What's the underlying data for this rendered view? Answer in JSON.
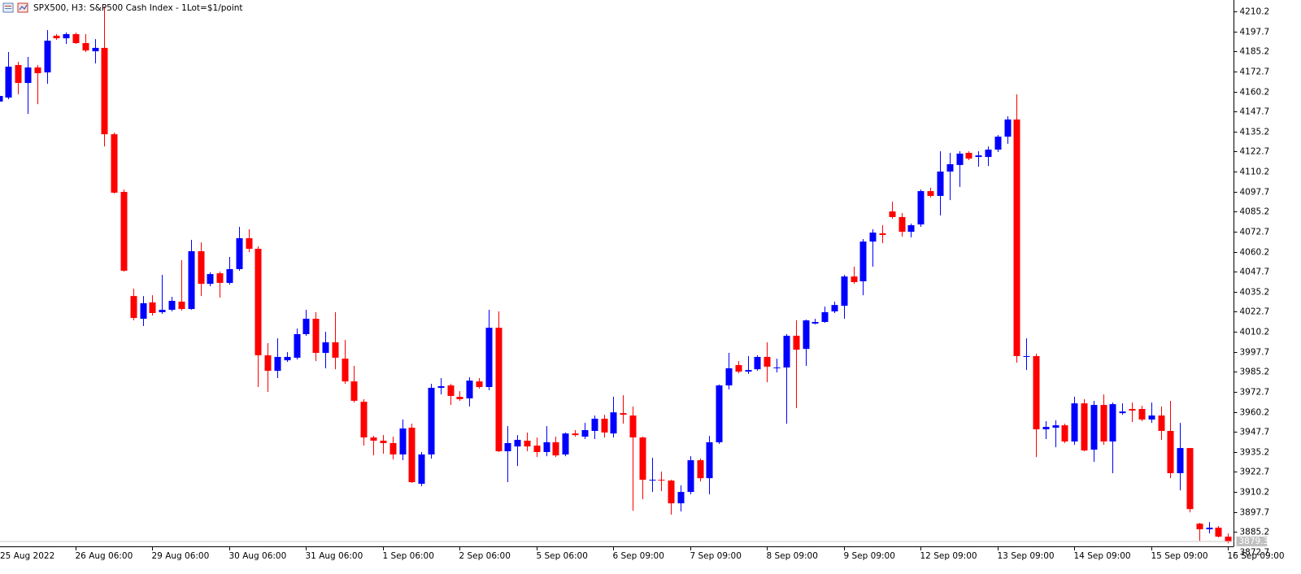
{
  "chart_data": {
    "type": "candlestick",
    "title": "SPX500, H3:",
    "subtitle": "S&P500 Cash Index - 1Lot=$1/point",
    "up_color": "#0000ff",
    "down_color": "#ff0000",
    "grid": false,
    "ylim": [
      3867.6,
      4217.3
    ],
    "yticks": [
      4210.2,
      4197.7,
      4185.2,
      4172.7,
      4160.2,
      4147.7,
      4135.2,
      4122.7,
      4110.2,
      4097.7,
      4085.2,
      4072.7,
      4060.2,
      4047.7,
      4035.2,
      4022.7,
      4010.2,
      3997.7,
      3985.2,
      3972.7,
      3960.2,
      3947.7,
      3935.2,
      3922.7,
      3910.2,
      3897.7,
      3885.2,
      3872.7
    ],
    "categories": [
      "25 Aug 2022",
      null,
      null,
      null,
      null,
      null,
      null,
      null,
      "26 Aug 06:00",
      null,
      null,
      null,
      null,
      null,
      null,
      null,
      "29 Aug 06:00",
      null,
      null,
      null,
      null,
      null,
      null,
      null,
      "30 Aug 06:00",
      null,
      null,
      null,
      null,
      null,
      null,
      null,
      "31 Aug 06:00",
      null,
      null,
      null,
      null,
      null,
      null,
      null,
      "1 Sep 06:00",
      null,
      null,
      null,
      null,
      null,
      null,
      null,
      "2 Sep 06:00",
      null,
      null,
      null,
      null,
      null,
      null,
      null,
      "5 Sep 06:00",
      null,
      null,
      null,
      null,
      null,
      null,
      null,
      "6 Sep 09:00",
      null,
      null,
      null,
      null,
      null,
      null,
      null,
      "7 Sep 09:00",
      null,
      null,
      null,
      null,
      null,
      null,
      null,
      "8 Sep 09:00",
      null,
      null,
      null,
      null,
      null,
      null,
      null,
      "9 Sep 09:00",
      null,
      null,
      null,
      null,
      null,
      null,
      null,
      "12 Sep 09:00",
      null,
      null,
      null,
      null,
      null,
      null,
      null,
      "13 Sep 09:00",
      null,
      null,
      null,
      null,
      null,
      null,
      null,
      "14 Sep 09:00",
      null,
      null,
      null,
      null,
      null,
      null,
      null,
      "15 Sep 09:00",
      null,
      null,
      null,
      null,
      null,
      null,
      null,
      "16 Sep 09:00"
    ],
    "open": [
      4153.9,
      4156.4,
      4176.7,
      4165.5,
      4175.2,
      4172.1,
      4195.0,
      4193.4,
      4196.0,
      4190.4,
      4185.3,
      4187.4,
      4133.5,
      4097.5,
      4032.5,
      4018.3,
      4028.5,
      4022.4,
      4023.9,
      4029.0,
      4024.4,
      4060.5,
      4040.1,
      4046.7,
      4040.7,
      4049.3,
      4068.6,
      4062.0,
      3995.5,
      3985.8,
      3992.4,
      3994.0,
      4008.7,
      4018.3,
      3997.0,
      4003.6,
      3993.4,
      3979.2,
      3966.5,
      3944.2,
      3942.2,
      3940.7,
      3933.6,
      3950.3,
      3915.3,
      3933.6,
      3975.2,
      3976.7,
      3969.6,
      3968.6,
      3979.2,
      3975.7,
      4012.7,
      3935.6,
      3938.6,
      3942.2,
      3939.1,
      3935.1,
      3941.2,
      3933.6,
      3946.7,
      3944.7,
      3948.3,
      3955.9,
      3946.7,
      3959.4,
      3957.9,
      3944.2,
      3917.3,
      3917.8,
      3917.3,
      3903.1,
      3910.2,
      3930.0,
      3918.8,
      3941.2,
      3976.7,
      3989.4,
      3985.3,
      3986.8,
      3994.5,
      3987.4,
      3987.9,
      4007.7,
      3999.5,
      4015.3,
      4016.3,
      4022.9,
      4026.4,
      4044.7,
      4041.7,
      4066.5,
      4071.6,
      4085.3,
      4081.8,
      4072.6,
      4077.2,
      4098.0,
      4095.0,
      4110.2,
      4114.3,
      4121.9,
      4119.3,
      4119.3,
      4123.9,
      4132.0,
      4142.7,
      3994.5,
      3995.0,
      3949.3,
      3950.3,
      3951.8,
      3941.7,
      3965.5,
      3936.6,
      3964.5,
      3941.7,
      3959.4,
      3962.0,
      3962.0,
      3955.4,
      3957.9,
      3948.3,
      3921.9,
      3937.6,
      3890.4,
      3886.9,
      3887.9,
      3882.3
    ],
    "high": [
      4160.5,
      4184.8,
      4178.7,
      4181.8,
      4176.7,
      4198.5,
      4196.0,
      4197.0,
      4197.0,
      4196.0,
      4192.9,
      4213.2,
      4134.6,
      4099.0,
      4037.1,
      4032.5,
      4033.0,
      4045.7,
      4032.0,
      4054.9,
      4067.6,
      4066.0,
      4047.3,
      4047.8,
      4056.9,
      4075.7,
      4074.2,
      4063.5,
      4003.1,
      4006.1,
      3997.5,
      4012.2,
      4023.9,
      4022.4,
      4010.2,
      4022.4,
      4005.1,
      3988.9,
      3968.1,
      3945.2,
      3945.7,
      3944.7,
      3955.4,
      3952.8,
      3935.1,
      3977.7,
      3981.3,
      3977.7,
      3973.1,
      3981.8,
      3981.3,
      4023.9,
      4022.9,
      3951.3,
      3945.7,
      3947.3,
      3944.2,
      3951.3,
      3944.7,
      3947.3,
      3948.8,
      3953.3,
      3957.9,
      3958.4,
      3969.6,
      3970.6,
      3963.5,
      3944.7,
      3931.5,
      3922.9,
      3917.8,
      3914.3,
      3932.5,
      3931.0,
      3945.2,
      3977.2,
      3997.0,
      3991.9,
      3995.0,
      3995.5,
      4003.6,
      3993.4,
      4008.7,
      4017.3,
      4017.8,
      4018.3,
      4025.9,
      4029.0,
      4045.7,
      4050.8,
      4068.1,
      4074.2,
      4076.7,
      4091.4,
      4084.3,
      4077.7,
      4099.0,
      4100.0,
      4122.9,
      4121.9,
      4122.9,
      4122.9,
      4122.9,
      4125.9,
      4133.0,
      4144.7,
      4158.4,
      4006.1,
      3996.5,
      3954.4,
      3954.9,
      3952.8,
      3969.6,
      3968.1,
      3967.1,
      3971.1,
      3966.0,
      3965.5,
      3966.0,
      3964.0,
      3966.0,
      3963.5,
      3967.1,
      3953.3,
      3937.6,
      3890.9,
      3891.4,
      3888.9,
      3884.3
    ],
    "low": [
      4152.8,
      4155.4,
      4158.4,
      4146.2,
      4152.3,
      4165.0,
      4192.4,
      4189.9,
      4189.9,
      4184.8,
      4177.7,
      4125.9,
      4096.5,
      4047.8,
      4017.3,
      4013.8,
      4020.3,
      4021.4,
      4022.9,
      4023.4,
      4023.9,
      4032.5,
      4038.6,
      4031.5,
      4039.6,
      4048.3,
      4059.9,
      3975.7,
      3972.6,
      3981.3,
      3991.4,
      3992.9,
      4007.7,
      3991.9,
      3987.4,
      3986.8,
      3977.7,
      3966.0,
      3939.1,
      3933.0,
      3934.1,
      3930.5,
      3930.0,
      3915.8,
      3913.8,
      3931.0,
      3971.1,
      3964.5,
      3967.1,
      3963.5,
      3974.7,
      3973.7,
      3935.1,
      3916.3,
      3926.4,
      3935.6,
      3932.0,
      3932.5,
      3932.0,
      3932.5,
      3944.7,
      3943.2,
      3943.2,
      3944.2,
      3944.2,
      3952.8,
      3898.5,
      3905.6,
      3910.2,
      3910.7,
      3896.0,
      3898.0,
      3908.7,
      3916.8,
      3908.7,
      3940.2,
      3974.2,
      3984.3,
      3983.8,
      3985.8,
      3978.7,
      3984.8,
      3952.8,
      3962.5,
      3988.9,
      4014.8,
      4015.8,
      4021.9,
      4018.3,
      4040.1,
      4033.0,
      4050.8,
      4065.5,
      4080.8,
      4069.6,
      4069.1,
      4075.7,
      4094.0,
      4082.8,
      4092.4,
      4100.6,
      4117.3,
      4113.2,
      4113.7,
      4122.4,
      4127.5,
      3990.9,
      3986.3,
      3932.0,
      3943.2,
      3938.1,
      3940.7,
      3939.6,
      3935.6,
      3929.0,
      3939.6,
      3921.9,
      3958.4,
      3953.9,
      3954.4,
      3953.3,
      3942.7,
      3918.8,
      3911.2,
      3897.5,
      3879.7,
      3884.3,
      3881.8,
      3878.2
    ],
    "close": [
      4157.4,
      4175.7,
      4165.5,
      4175.2,
      4171.6,
      4191.9,
      4193.4,
      4196.0,
      4190.4,
      4185.8,
      4187.4,
      4133.5,
      4097.0,
      4048.3,
      4018.8,
      4028.0,
      4021.9,
      4023.9,
      4029.5,
      4024.4,
      4060.5,
      4040.1,
      4046.2,
      4040.7,
      4049.3,
      4068.6,
      4062.0,
      3995.5,
      3985.8,
      3994.5,
      3994.5,
      4008.7,
      4018.3,
      3997.0,
      4003.6,
      3994.0,
      3979.2,
      3967.1,
      3944.2,
      3942.2,
      3940.7,
      3933.6,
      3949.8,
      3916.3,
      3933.6,
      3975.2,
      3976.2,
      3970.1,
      3968.1,
      3979.7,
      3975.7,
      4012.7,
      3935.6,
      3940.7,
      3942.7,
      3938.6,
      3935.1,
      3941.2,
      3933.0,
      3946.7,
      3945.7,
      3948.8,
      3955.9,
      3947.3,
      3959.9,
      3958.4,
      3944.2,
      3917.8,
      3917.8,
      3917.3,
      3903.1,
      3910.2,
      3930.0,
      3918.8,
      3941.2,
      3976.7,
      3987.4,
      3985.3,
      3986.3,
      3994.5,
      3988.4,
      3987.9,
      4007.7,
      3999.0,
      4017.3,
      4016.3,
      4022.4,
      4026.9,
      4044.7,
      4041.2,
      4066.5,
      4072.1,
      4070.6,
      4081.8,
      4072.6,
      4076.7,
      4098.0,
      4095.0,
      4110.2,
      4114.8,
      4121.4,
      4118.3,
      4120.3,
      4123.9,
      4132.0,
      4142.7,
      3995.0,
      3995.0,
      3949.3,
      3950.8,
      3951.8,
      3941.7,
      3965.5,
      3936.1,
      3964.5,
      3941.7,
      3965.0,
      3960.4,
      3961.0,
      3955.4,
      3957.9,
      3948.3,
      3921.9,
      3937.6,
      3899.5,
      3886.9,
      3887.9,
      3882.3,
      3879.3
    ]
  }
}
